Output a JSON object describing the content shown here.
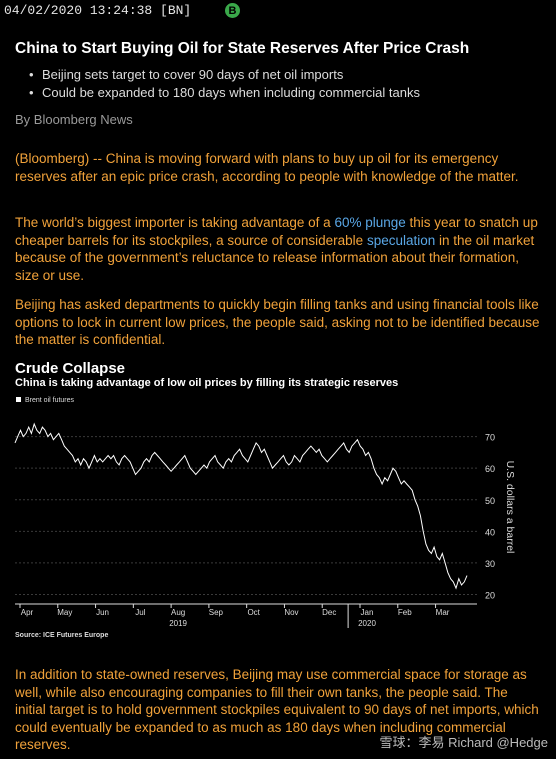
{
  "header": {
    "timestamp": "04/02/2020 13:24:38 [BN]",
    "badge": "B"
  },
  "article": {
    "headline": "China to Start Buying Oil for State Reserves After Price Crash",
    "bullets": [
      "Beijing sets target to cover 90 days of net oil imports",
      "Could be expanded to 180 days when including commercial tanks"
    ],
    "byline": "By Bloomberg News",
    "p1": "(Bloomberg) -- China is moving forward with plans to buy up oil for its emergency reserves after an epic price crash, according to people with knowledge of the matter.",
    "p2_a": "The world’s biggest importer is taking advantage of a ",
    "p2_link1": "60% plunge",
    "p2_b": " this year to snatch up cheaper barrels for its stockpiles, a source of considerable ",
    "p2_link2": "speculation",
    "p2_c": " in the oil market because of the government’s reluctance to release information about their formation, size or use.",
    "p3": "Beijing has asked departments to quickly begin filling tanks and using financial tools like options to lock in current low prices, the people said, asking not to be identified because the matter is confidential.",
    "p4": "In addition to state-owned reserves, Beijing may use commercial space for storage as well, while also encouraging companies to fill their own tanks, the people said. The initial target is to hold government stockpiles equivalent to 90 days of net imports, which could eventually be expanded to as much as 180 days when including commercial reserves."
  },
  "watermark": "雪球：李易  Richard  @Hedge",
  "chart_data": {
    "type": "line",
    "title": "Crude Collapse",
    "subtitle": "China is taking advantage of low oil prices by filling its strategic reserves",
    "series": [
      {
        "name": "Brent oil futures",
        "color": "#ffffff",
        "values": [
          68,
          70,
          72,
          70,
          71,
          73,
          71,
          74,
          72,
          71,
          73,
          72,
          70,
          71,
          69,
          70,
          71,
          69,
          67,
          66,
          65,
          64,
          62,
          63,
          61,
          63,
          62,
          60,
          62,
          64,
          62,
          63,
          62,
          63,
          64,
          63,
          64,
          62,
          61,
          63,
          64,
          63,
          62,
          60,
          58,
          59,
          60,
          62,
          63,
          62,
          64,
          65,
          64,
          63,
          62,
          61,
          60,
          59,
          60,
          61,
          62,
          63,
          64,
          62,
          60,
          59,
          58,
          59,
          60,
          61,
          60,
          62,
          63,
          64,
          62,
          61,
          60,
          62,
          63,
          62,
          64,
          65,
          66,
          64,
          63,
          62,
          64,
          66,
          68,
          67,
          65,
          66,
          64,
          62,
          60,
          61,
          62,
          63,
          64,
          62,
          61,
          62,
          64,
          63,
          62,
          64,
          65,
          66,
          67,
          66,
          65,
          66,
          64,
          63,
          62,
          63,
          64,
          65,
          66,
          67,
          68,
          66,
          65,
          67,
          68,
          69,
          67,
          66,
          64,
          65,
          63,
          60,
          58,
          57,
          55,
          57,
          56,
          58,
          60,
          59,
          57,
          55,
          56,
          55,
          54,
          53,
          50,
          48,
          45,
          40,
          36,
          34,
          33,
          35,
          32,
          31,
          33,
          30,
          27,
          25,
          24,
          22,
          25,
          23,
          24,
          26
        ]
      }
    ],
    "x_tick_labels": [
      "Apr",
      "May",
      "Jun",
      "Jul",
      "Aug",
      "Sep",
      "Oct",
      "Nov",
      "Dec",
      "Jan",
      "Feb",
      "Mar"
    ],
    "x_year_labels": [
      "2019",
      "2020"
    ],
    "y_ticks": [
      20,
      30,
      40,
      50,
      60,
      70
    ],
    "ylim": [
      17,
      80
    ],
    "ylabel": "U.S. dollars a barrel",
    "source": "Source: ICE Futures Europe"
  }
}
